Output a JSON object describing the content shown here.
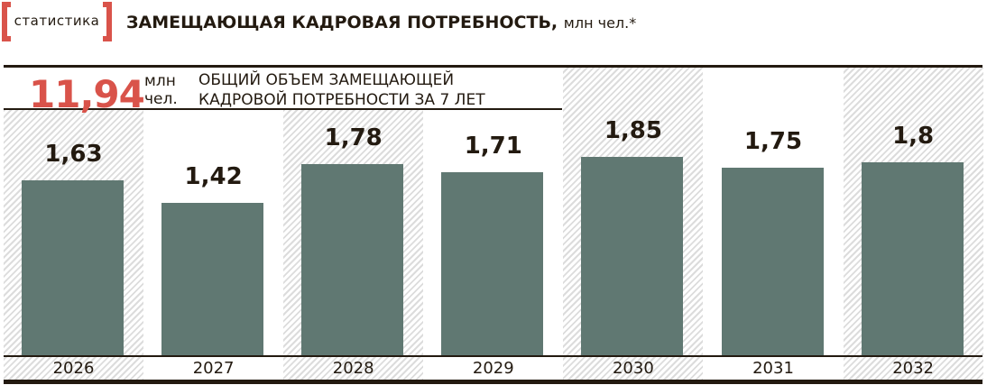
{
  "tag_label": "статистика",
  "title": "ЗАМЕЩАЮЩАЯ КАДРОВАЯ ПОТРЕБНОСТЬ,",
  "title_unit": "млн чел.*",
  "total": {
    "value": "11,94",
    "unit_line1": "млн",
    "unit_line2": "чел.",
    "desc_line1": "ОБЩИЙ ОБЪЕМ ЗАМЕЩАЮЩЕЙ",
    "desc_line2": "КАДРОВОЙ ПОТРЕБНОСТИ ЗА 7 ЛЕТ"
  },
  "colors": {
    "accent": "#d9534a",
    "bar": "#607872",
    "text": "#231a10"
  },
  "chart_data": {
    "type": "bar",
    "categories": [
      "2026",
      "2027",
      "2028",
      "2029",
      "2030",
      "2031",
      "2032"
    ],
    "values": [
      1.63,
      1.42,
      1.78,
      1.71,
      1.85,
      1.75,
      1.8
    ],
    "labels": [
      "1,63",
      "1,42",
      "1,78",
      "1,71",
      "1,85",
      "1,75",
      "1,8"
    ],
    "ylim": [
      0,
      2
    ],
    "grid": false
  }
}
